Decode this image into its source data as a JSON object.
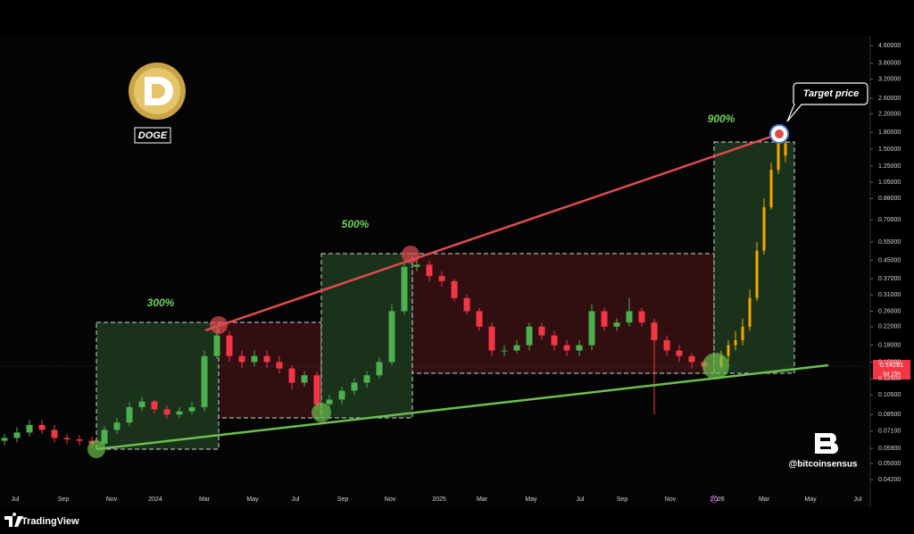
{
  "chart_data": {
    "type": "candlestick",
    "asset": "DOGE",
    "log_scale": true,
    "ylim": [
      0.0337,
      5.12
    ],
    "yticks": [
      {
        "value": 4.6,
        "label": "4.60000"
      },
      {
        "value": 3.8,
        "label": "3.80000"
      },
      {
        "value": 3.2,
        "label": "3.20000"
      },
      {
        "value": 2.6,
        "label": "2.60000"
      },
      {
        "value": 2.2,
        "label": "2.20000"
      },
      {
        "value": 1.8,
        "label": "1.80000"
      },
      {
        "value": 1.5,
        "label": "1.50000"
      },
      {
        "value": 1.25,
        "label": "1.25000"
      },
      {
        "value": 1.05,
        "label": "1.05000"
      },
      {
        "value": 0.88,
        "label": "0.88000"
      },
      {
        "value": 0.7,
        "label": "0.70000"
      },
      {
        "value": 0.55,
        "label": "0.55000"
      },
      {
        "value": 0.45,
        "label": "0.45000"
      },
      {
        "value": 0.37,
        "label": "0.37000"
      },
      {
        "value": 0.31,
        "label": "0.31000"
      },
      {
        "value": 0.26,
        "label": "0.26000"
      },
      {
        "value": 0.22,
        "label": "0.22000"
      },
      {
        "value": 0.18,
        "label": "0.18000"
      },
      {
        "value": 0.15,
        "label": "0.15000"
      },
      {
        "value": 0.125,
        "label": "0.12500"
      },
      {
        "value": 0.105,
        "label": "0.10500"
      },
      {
        "value": 0.085,
        "label": "0.08500"
      },
      {
        "value": 0.071,
        "label": "0.07100"
      },
      {
        "value": 0.059,
        "label": "0.05900"
      },
      {
        "value": 0.05,
        "label": "0.05000"
      },
      {
        "value": 0.042,
        "label": "0.04200"
      }
    ],
    "xticks": [
      "Jul",
      "Sep",
      "Nov",
      "2024",
      "Mar",
      "May",
      "Jul",
      "Sep",
      "Nov",
      "2025",
      "Mar",
      "May",
      "Jul",
      "Sep",
      "Nov",
      "2026",
      "Mar",
      "May",
      "Jul"
    ],
    "up_color": "#4caf50",
    "down_color": "#f23645",
    "open": [
      0.064,
      0.066,
      0.07,
      0.076,
      0.072,
      0.066,
      0.065,
      0.064,
      0.062,
      0.072,
      0.078,
      0.092,
      0.098,
      0.09,
      0.085,
      0.088,
      0.092,
      0.16,
      0.2,
      0.16,
      0.15,
      0.16,
      0.15,
      0.14,
      0.12,
      0.13,
      0.095,
      0.1,
      0.11,
      0.12,
      0.13,
      0.15,
      0.26,
      0.42,
      0.43,
      0.38,
      0.36,
      0.3,
      0.26,
      0.22,
      0.17,
      0.17,
      0.18,
      0.22,
      0.2,
      0.18,
      0.17,
      0.18,
      0.26,
      0.22,
      0.23,
      0.26,
      0.23,
      0.19,
      0.17,
      0.16,
      0.15
    ],
    "high": [
      0.069,
      0.074,
      0.08,
      0.08,
      0.076,
      0.069,
      0.068,
      0.067,
      0.075,
      0.082,
      0.097,
      0.103,
      0.1,
      0.094,
      0.092,
      0.097,
      0.17,
      0.22,
      0.21,
      0.17,
      0.17,
      0.17,
      0.16,
      0.145,
      0.136,
      0.135,
      0.105,
      0.115,
      0.126,
      0.136,
      0.158,
      0.28,
      0.44,
      0.46,
      0.45,
      0.4,
      0.37,
      0.31,
      0.27,
      0.23,
      0.18,
      0.19,
      0.23,
      0.23,
      0.21,
      0.19,
      0.19,
      0.28,
      0.27,
      0.24,
      0.3,
      0.27,
      0.24,
      0.2,
      0.18,
      0.165,
      0.155
    ],
    "low": [
      0.061,
      0.063,
      0.067,
      0.069,
      0.063,
      0.062,
      0.061,
      0.059,
      0.06,
      0.069,
      0.075,
      0.088,
      0.086,
      0.081,
      0.082,
      0.085,
      0.088,
      0.155,
      0.15,
      0.14,
      0.143,
      0.14,
      0.133,
      0.112,
      0.115,
      0.09,
      0.091,
      0.095,
      0.105,
      0.114,
      0.125,
      0.145,
      0.25,
      0.4,
      0.36,
      0.34,
      0.29,
      0.25,
      0.21,
      0.16,
      0.16,
      0.165,
      0.17,
      0.19,
      0.17,
      0.16,
      0.16,
      0.17,
      0.21,
      0.21,
      0.22,
      0.22,
      0.085,
      0.16,
      0.15,
      0.14,
      0.135
    ],
    "close": [
      0.066,
      0.07,
      0.076,
      0.072,
      0.066,
      0.065,
      0.064,
      0.062,
      0.072,
      0.078,
      0.092,
      0.098,
      0.09,
      0.085,
      0.088,
      0.092,
      0.16,
      0.2,
      0.16,
      0.15,
      0.16,
      0.15,
      0.14,
      0.12,
      0.13,
      0.095,
      0.1,
      0.11,
      0.12,
      0.13,
      0.15,
      0.26,
      0.42,
      0.43,
      0.38,
      0.36,
      0.3,
      0.26,
      0.22,
      0.17,
      0.17,
      0.18,
      0.22,
      0.2,
      0.18,
      0.17,
      0.18,
      0.26,
      0.22,
      0.23,
      0.26,
      0.23,
      0.19,
      0.17,
      0.16,
      0.15,
      0.143
    ],
    "projection": {
      "color": "#f7a600",
      "open": [
        0.143,
        0.16,
        0.18,
        0.19,
        0.22,
        0.3,
        0.5,
        0.8,
        1.2,
        1.6
      ],
      "high": [
        0.17,
        0.19,
        0.21,
        0.24,
        0.33,
        0.55,
        0.88,
        1.3,
        1.75,
        1.7
      ],
      "low": [
        0.14,
        0.15,
        0.17,
        0.18,
        0.21,
        0.29,
        0.48,
        0.78,
        1.15,
        1.3
      ],
      "close": [
        0.16,
        0.18,
        0.19,
        0.22,
        0.3,
        0.5,
        0.8,
        1.2,
        1.6,
        1.4
      ]
    },
    "annotations": [
      "300%",
      "500%",
      "900%"
    ],
    "target_label": "Target price",
    "last_price": 0.14281,
    "countdown": "3d 15h",
    "watermark": "@bitcoinsensus",
    "brand": "TradingView"
  }
}
